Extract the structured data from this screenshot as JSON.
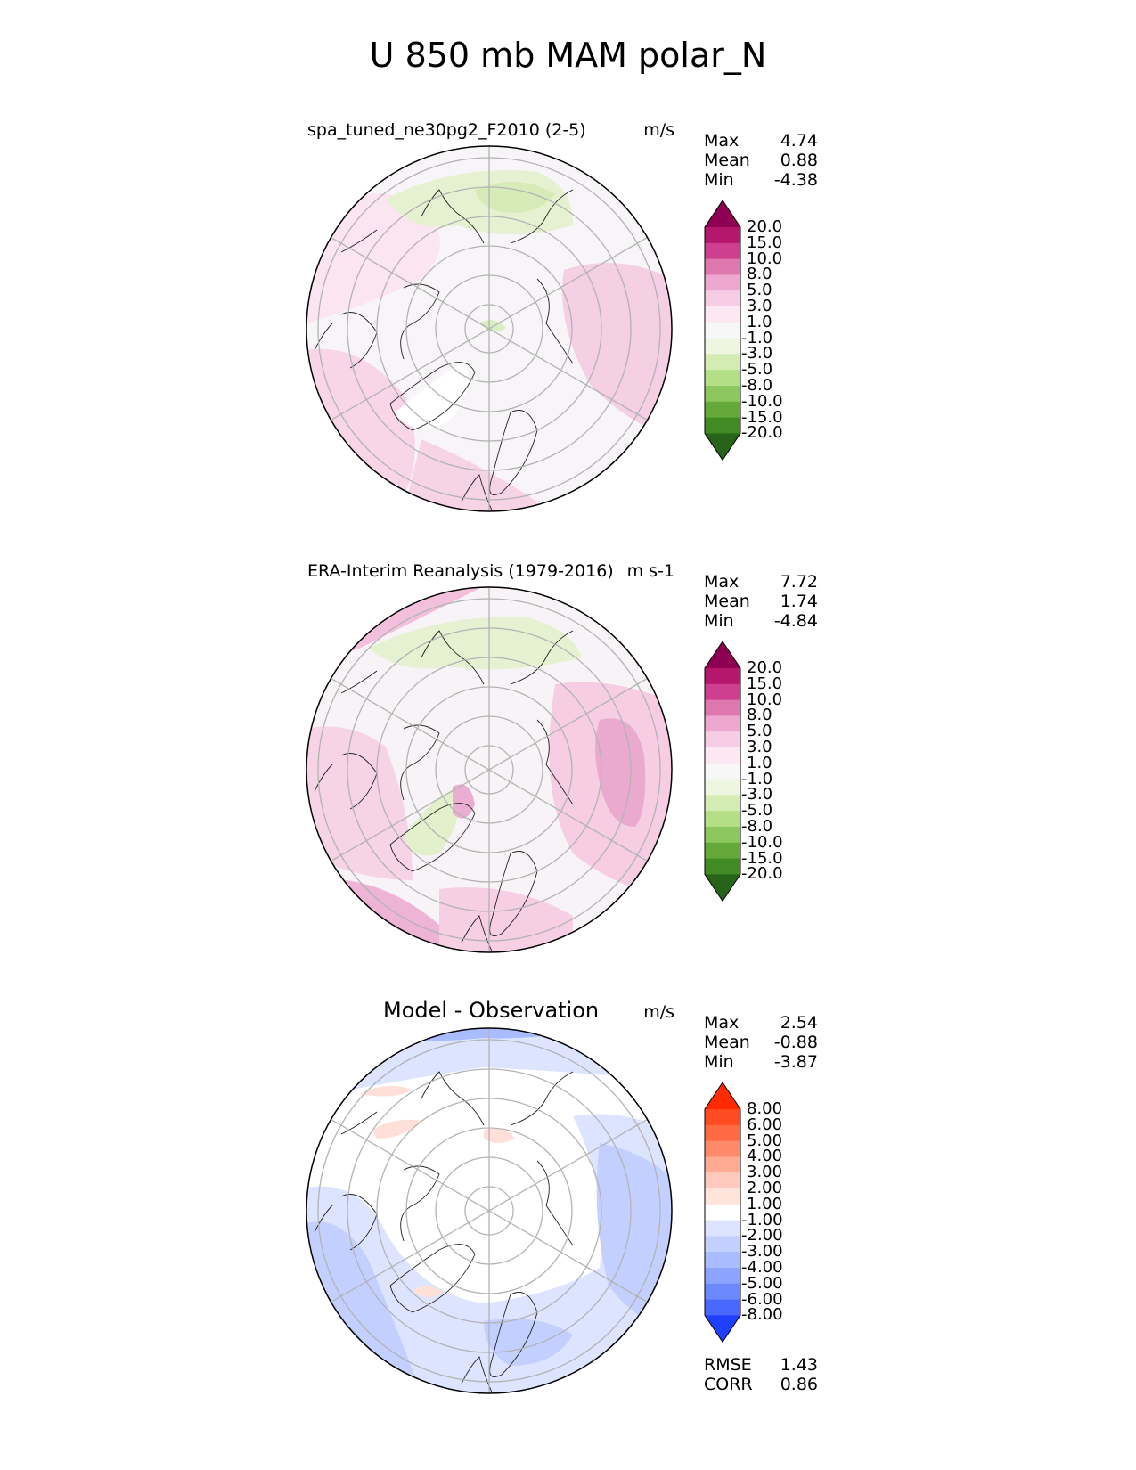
{
  "title": "U 850 mb MAM polar_N",
  "chart_data": [
    {
      "type": "heatmap",
      "projection": "north polar stereographic",
      "title": "spa_tuned_ne30pg2_F2010 (2-5)",
      "units": "m/s",
      "stats": [
        {
          "label": "Max",
          "value": "4.74"
        },
        {
          "label": "Mean",
          "value": "0.88"
        },
        {
          "label": "Min",
          "value": "-4.38"
        }
      ],
      "colorbar_levels": [
        "20.0",
        "15.0",
        "10.0",
        "8.0",
        "5.0",
        "3.0",
        "1.0",
        "-1.0",
        "-3.0",
        "-5.0",
        "-8.0",
        "-10.0",
        "-15.0",
        "-20.0"
      ],
      "colorbar_colors": [
        "#8e0152",
        "#b4176b",
        "#cf3f8f",
        "#de77ae",
        "#eea8d0",
        "#f7cde6",
        "#fbe8f2",
        "#f7f7f7",
        "#eef5e0",
        "#d2ecb2",
        "#b5df87",
        "#8cc760",
        "#64a93a",
        "#428b24",
        "#276419"
      ]
    },
    {
      "type": "heatmap",
      "projection": "north polar stereographic",
      "title": "ERA-Interim Reanalysis (1979-2016)",
      "units": "m s-1",
      "stats": [
        {
          "label": "Max",
          "value": "7.72"
        },
        {
          "label": "Mean",
          "value": "1.74"
        },
        {
          "label": "Min",
          "value": "-4.84"
        }
      ],
      "colorbar_levels": [
        "20.0",
        "15.0",
        "10.0",
        "8.0",
        "5.0",
        "3.0",
        "1.0",
        "-1.0",
        "-3.0",
        "-5.0",
        "-8.0",
        "-10.0",
        "-15.0",
        "-20.0"
      ],
      "colorbar_colors": [
        "#8e0152",
        "#b4176b",
        "#cf3f8f",
        "#de77ae",
        "#eea8d0",
        "#f7cde6",
        "#fbe8f2",
        "#f7f7f7",
        "#eef5e0",
        "#d2ecb2",
        "#b5df87",
        "#8cc760",
        "#64a93a",
        "#428b24",
        "#276419"
      ]
    },
    {
      "type": "heatmap",
      "projection": "north polar stereographic",
      "title": "Model - Observation",
      "units": "m/s",
      "stats": [
        {
          "label": "Max",
          "value": "2.54"
        },
        {
          "label": "Mean",
          "value": "-0.88"
        },
        {
          "label": "Min",
          "value": "-3.87"
        }
      ],
      "extra_stats": [
        {
          "label": "RMSE",
          "value": "1.43"
        },
        {
          "label": "CORR",
          "value": "0.86"
        }
      ],
      "colorbar_levels": [
        "8.00",
        "6.00",
        "5.00",
        "4.00",
        "3.00",
        "2.00",
        "1.00",
        "-1.00",
        "-2.00",
        "-3.00",
        "-4.00",
        "-5.00",
        "-6.00",
        "-8.00"
      ],
      "colorbar_colors": [
        "#ff2a00",
        "#ff4b22",
        "#ff6a45",
        "#ff8a6b",
        "#ffab94",
        "#ffcabd",
        "#ffe4dc",
        "#ffffff",
        "#dce4ff",
        "#c3d0ff",
        "#a9bcff",
        "#8ca4ff",
        "#6c88ff",
        "#4a68ff",
        "#1f3fff"
      ]
    }
  ]
}
